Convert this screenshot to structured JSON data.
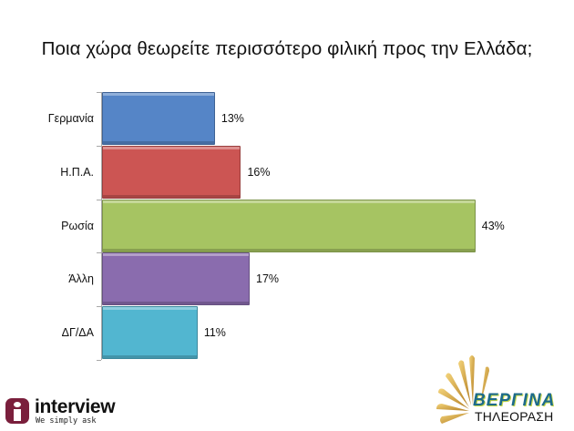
{
  "title": "Ποια χώρα θεωρείτε περισσότερο φιλική προς την Ελλάδα;",
  "chart_data": {
    "type": "bar",
    "orientation": "horizontal",
    "title": "Ποια χώρα θεωρείτε περισσότερο φιλική προς την Ελλάδα;",
    "categories": [
      "Γερμανία",
      "Η.Π.Α.",
      "Ρωσία",
      "Άλλη",
      "ΔΓ/ΔΑ"
    ],
    "values": [
      13,
      16,
      43,
      17,
      11
    ],
    "value_labels": [
      "13%",
      "16%",
      "43%",
      "17%",
      "11%"
    ],
    "colors": [
      "#4f81bd",
      "#c0504d",
      "#9bbb59",
      "#8064a2",
      "#4bacc6"
    ],
    "unit": "%",
    "xlabel": "",
    "ylabel": "",
    "xlim": [
      0,
      45
    ],
    "grid": false,
    "legend": null,
    "data_labels": true
  },
  "rows": [
    {
      "label": "Γερμανία",
      "value_label": "13%",
      "value": 13,
      "color": "#5585c7"
    },
    {
      "label": "Η.Π.Α.",
      "value_label": "16%",
      "value": 16,
      "color": "#cc5553"
    },
    {
      "label": "Ρωσία",
      "value_label": "43%",
      "value": 43,
      "color": "#a6c462"
    },
    {
      "label": "Άλλη",
      "value_label": "17%",
      "value": 17,
      "color": "#8a6cae"
    },
    {
      "label": "ΔΓ/ΔΑ",
      "value_label": "11%",
      "value": 11,
      "color": "#52b6d0"
    }
  ],
  "logos": {
    "interview": {
      "name": "interview",
      "tagline": "We simply ask"
    },
    "vergina": {
      "name": "ΒΕΡΓΙΝΑ",
      "subtitle": "ΤΗΛΕΟΡΑΣΗ"
    }
  }
}
